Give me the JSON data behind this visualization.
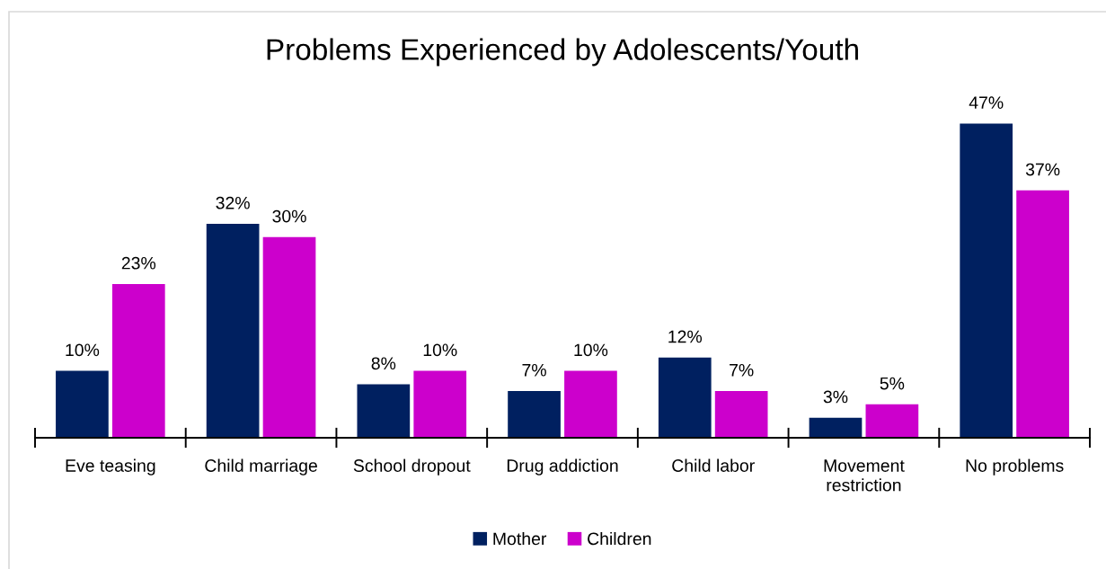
{
  "chart_data": {
    "type": "bar",
    "title": "Problems Experienced by Adolescents/Youth",
    "categories": [
      "Eve teasing",
      "Child marriage",
      "School dropout",
      "Drug addiction",
      "Child labor",
      "Movement restriction",
      "No problems"
    ],
    "series": [
      {
        "name": "Mother",
        "color": "#002060",
        "values": [
          10,
          32,
          8,
          7,
          12,
          3,
          47
        ],
        "value_labels": [
          "10%",
          "32%",
          "8%",
          "7%",
          "12%",
          "3%",
          "47%"
        ]
      },
      {
        "name": "Children",
        "color": "#cc00cc",
        "values": [
          23,
          30,
          10,
          10,
          7,
          5,
          37
        ],
        "value_labels": [
          "23%",
          "30%",
          "10%",
          "10%",
          "7%",
          "5%",
          "37%"
        ]
      }
    ],
    "legend": "bottom",
    "tick_labels": "x"
  }
}
